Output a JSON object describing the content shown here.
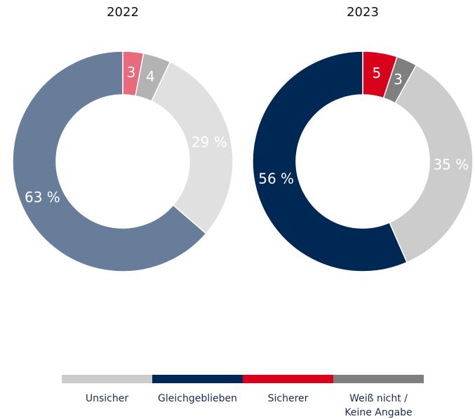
{
  "chart_data": [
    {
      "type": "donut",
      "title": "2022",
      "categories": [
        "Sicherer",
        "Weiß nicht /\nKeine Angabe",
        "Unsicher",
        "Gleichgeblieben"
      ],
      "values": [
        3,
        4,
        29,
        63
      ],
      "value_labels": [
        "3",
        "4",
        "29 %",
        "63 %"
      ],
      "colors": [
        "#e86a7b",
        "#b3b3b3",
        "#e0e0e0",
        "#687d99"
      ]
    },
    {
      "type": "donut",
      "title": "2023",
      "categories": [
        "Sicherer",
        "Weiß nicht /\nKeine Angabe",
        "Unsicher",
        "Gleichgeblieben"
      ],
      "values": [
        5,
        3,
        35,
        56
      ],
      "value_labels": [
        "5",
        "3",
        "35 %",
        "56 %"
      ],
      "colors": [
        "#d9001b",
        "#7f7f7f",
        "#cccccc",
        "#002855"
      ]
    }
  ],
  "legend": [
    {
      "name": "Unsicher",
      "color": "#cccccc"
    },
    {
      "name": "Gleichgeblieben",
      "color": "#002855"
    },
    {
      "name": "Sicherer",
      "color": "#d9001b"
    },
    {
      "name": "Weiß nicht /\nKeine Angabe",
      "color": "#7f7f7f"
    }
  ]
}
